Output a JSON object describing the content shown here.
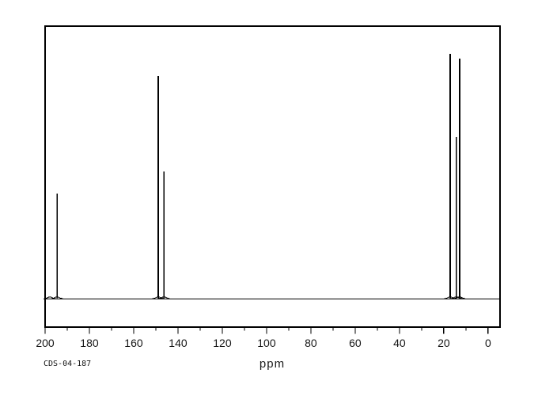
{
  "chart_data": {
    "type": "line",
    "kind": "13C NMR spectrum",
    "title": "",
    "xlabel": "ppm",
    "ylabel": "",
    "annotation": "CDS-04-187",
    "line_color": "#000000",
    "background_color": "#ffffff",
    "x_axis": {
      "label": "ppm",
      "left_ppm": 200,
      "right_ppm": -5.4,
      "inverted": true,
      "major_ticks": [
        200,
        180,
        160,
        140,
        120,
        100,
        80,
        60,
        40,
        20,
        0
      ],
      "minor_tick_step": 10,
      "grid": false
    },
    "y_axis": {
      "visible": false,
      "range": [
        0,
        1.1
      ]
    },
    "peaks": [
      {
        "ppm": 194.6,
        "intensity": 0.43
      },
      {
        "ppm": 148.9,
        "intensity": 0.91
      },
      {
        "ppm": 146.3,
        "intensity": 0.52
      },
      {
        "ppm": 17.1,
        "intensity": 1.0
      },
      {
        "ppm": 14.4,
        "intensity": 0.66
      },
      {
        "ppm": 12.9,
        "intensity": 0.98
      }
    ],
    "noise_bumps": [
      {
        "ppm": 197.8,
        "intensity": 0.008
      }
    ],
    "baseline_intensity": 0,
    "legend": null
  }
}
